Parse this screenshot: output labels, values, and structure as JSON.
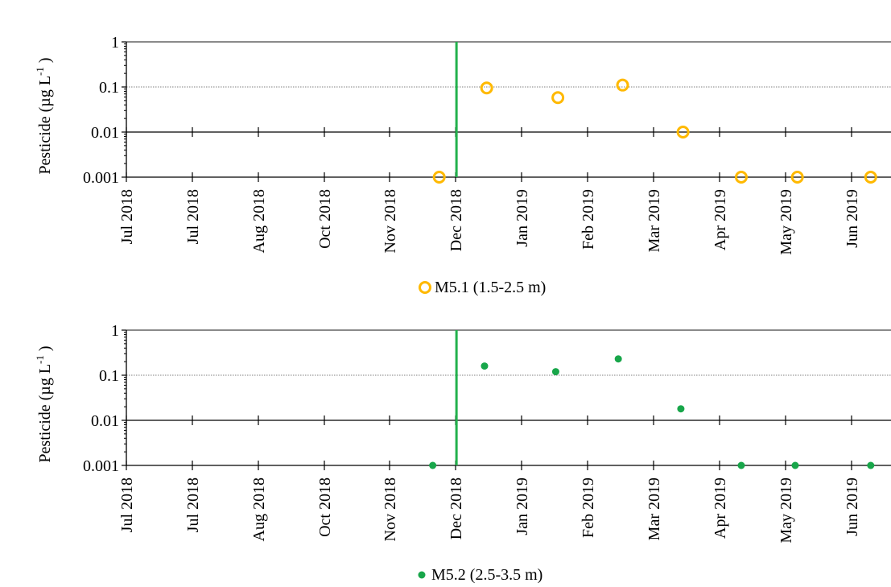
{
  "chart_data": [
    {
      "type": "scatter",
      "ylabel_main": "Pesticide (µg  L",
      "ylabel_sup": "-1",
      "ylabel_close": " )",
      "yscale": "log",
      "ylim": [
        0.001,
        1
      ],
      "y_ticks": [
        "1",
        "0.1",
        "0.01",
        "0.001"
      ],
      "x_tick_labels": [
        "Jul 2018",
        "Jul 2018",
        "Aug 2018",
        "Oct 2018",
        "Nov 2018",
        "Dec 2018",
        "Jan 2019",
        "Feb 2019",
        "Mar 2019",
        "Apr 2019",
        "May 2019",
        "Jun 2019"
      ],
      "vertical_line_x": "2018-11-21",
      "vertical_line_color": "#22b14c",
      "grid": "horizontal lines at 1, 0.01 and 0.001 (solid), 0.1 (dotted)",
      "series": [
        {
          "name": "M5.1 (1.5-2.5 m)",
          "marker": "open-circle",
          "color": "#ffb900",
          "points": [
            {
              "x": "2018-11-13",
              "y": 0.001
            },
            {
              "x": "2018-12-05",
              "y": 0.095
            },
            {
              "x": "2019-01-07",
              "y": 0.058
            },
            {
              "x": "2019-02-06",
              "y": 0.11
            },
            {
              "x": "2019-03-06",
              "y": 0.01
            },
            {
              "x": "2019-04-02",
              "y": 0.001
            },
            {
              "x": "2019-04-28",
              "y": 0.001
            },
            {
              "x": "2019-06-01",
              "y": 0.001
            }
          ]
        }
      ],
      "legend_position": "bottom"
    },
    {
      "type": "scatter",
      "ylabel_main": "Pesticide (µg  L",
      "ylabel_sup": "-1",
      "ylabel_close": " )",
      "yscale": "log",
      "ylim": [
        0.001,
        1
      ],
      "y_ticks": [
        "1",
        "0.1",
        "0.01",
        "0.001"
      ],
      "x_tick_labels": [
        "Jul 2018",
        "Jul 2018",
        "Aug 2018",
        "Oct 2018",
        "Nov 2018",
        "Dec 2018",
        "Jan 2019",
        "Feb 2019",
        "Mar 2019",
        "Apr 2019",
        "May 2019",
        "Jun 2019"
      ],
      "vertical_line_x": "2018-11-21",
      "vertical_line_color": "#22b14c",
      "grid": "horizontal lines at 1, 0.01 and 0.001 (solid), 0.1 (dotted)",
      "series": [
        {
          "name": "M5.2 (2.5-3.5 m)",
          "marker": "filled-dot",
          "color": "#18a64a",
          "points": [
            {
              "x": "2018-11-10",
              "y": 0.001
            },
            {
              "x": "2018-12-04",
              "y": 0.16
            },
            {
              "x": "2019-01-06",
              "y": 0.12
            },
            {
              "x": "2019-02-04",
              "y": 0.23
            },
            {
              "x": "2019-03-05",
              "y": 0.018
            },
            {
              "x": "2019-04-02",
              "y": 0.001
            },
            {
              "x": "2019-04-27",
              "y": 0.001
            },
            {
              "x": "2019-06-01",
              "y": 0.001
            }
          ]
        }
      ],
      "legend_position": "bottom"
    }
  ]
}
